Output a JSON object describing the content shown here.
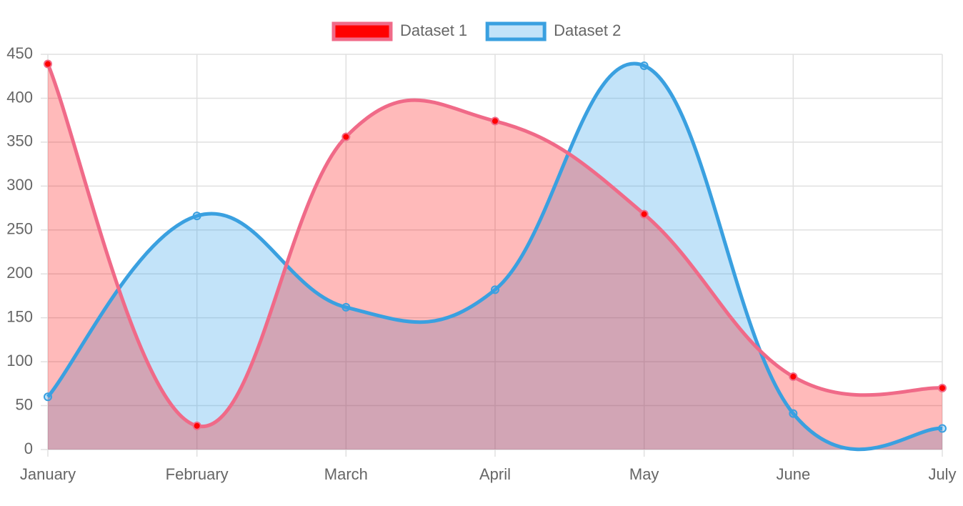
{
  "chart_data": {
    "type": "line",
    "categories": [
      "January",
      "February",
      "March",
      "April",
      "May",
      "June",
      "July"
    ],
    "series": [
      {
        "name": "Dataset 1",
        "color": "#f06a88",
        "fill": "rgba(255,0,0,0.27)",
        "point_color": "#ff0000",
        "values": [
          439,
          27,
          356,
          374,
          268,
          83,
          70
        ]
      },
      {
        "name": "Dataset 2",
        "color": "#3aa0e0",
        "fill": "rgba(54,162,235,0.3)",
        "point_color": "rgba(54,162,235,0.3)",
        "values": [
          60,
          266,
          162,
          182,
          437,
          41,
          24
        ]
      }
    ],
    "ylim": [
      0,
      450
    ],
    "yticks": [
      0,
      50,
      100,
      150,
      200,
      250,
      300,
      350,
      400,
      450
    ],
    "grid": true,
    "legend": "top"
  }
}
